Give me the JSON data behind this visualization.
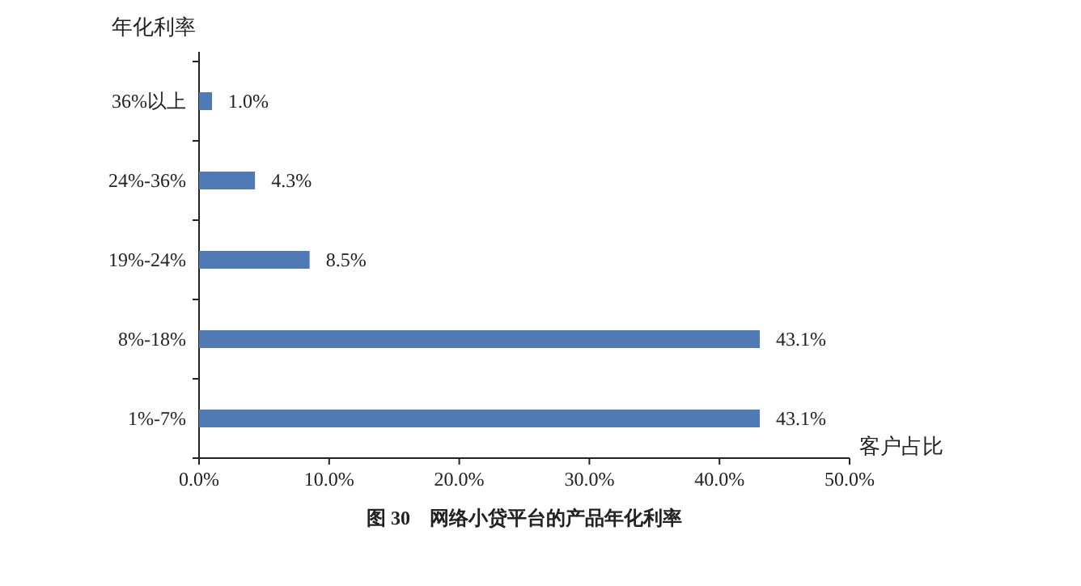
{
  "chart_data": {
    "type": "bar",
    "orientation": "horizontal",
    "title": "图 30　网络小贷平台的产品年化利率",
    "xlabel": "客户占比",
    "ylabel": "年化利率",
    "categories": [
      "36%以上",
      "24%-36%",
      "19%-24%",
      "8%-18%",
      "1%-7%"
    ],
    "values": [
      1.0,
      4.3,
      8.5,
      43.1,
      43.1
    ],
    "value_labels": [
      "1.0%",
      "4.3%",
      "8.5%",
      "43.1%",
      "43.1%"
    ],
    "color": "#4f7ab3",
    "xlim": [
      0,
      50
    ],
    "xticks": [
      {
        "value": 0,
        "label": "0.0%"
      },
      {
        "value": 10,
        "label": "10.0%"
      },
      {
        "value": 20,
        "label": "20.0%"
      },
      {
        "value": 30,
        "label": "30.0%"
      },
      {
        "value": 40,
        "label": "40.0%"
      },
      {
        "value": 50,
        "label": "50.0%"
      }
    ],
    "grid": false
  }
}
